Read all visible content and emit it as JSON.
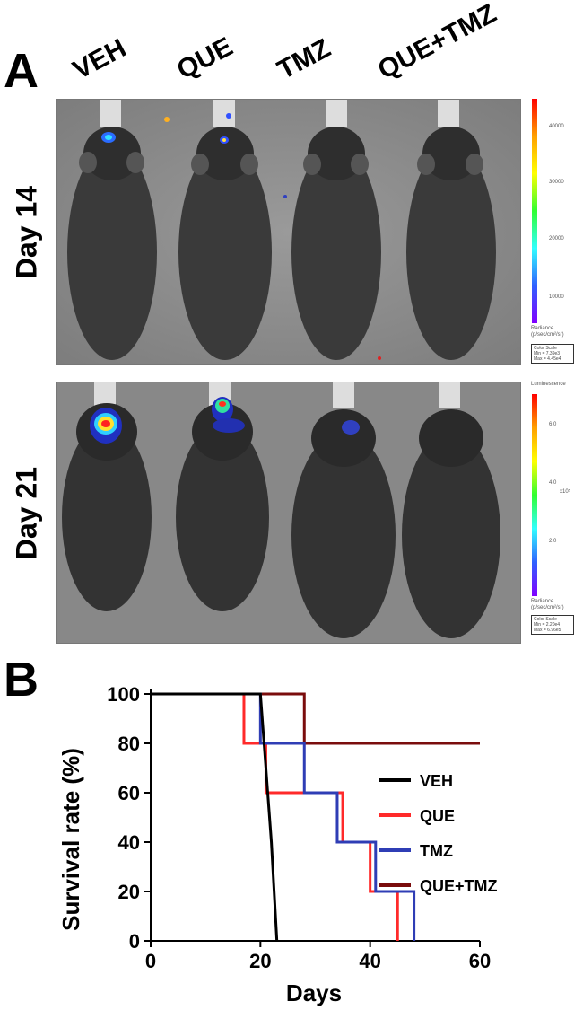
{
  "panel_a": {
    "letter": "A",
    "columns": [
      "VEH",
      "QUE",
      "TMZ",
      "QUE+TMZ"
    ],
    "rows": [
      "Day 14",
      "Day 21"
    ],
    "colorbar_top": {
      "ticks": [
        "40000",
        "30000",
        "20000",
        "10000"
      ],
      "title": "Radiance",
      "subtitle": "(p/sec/cm²/sr)",
      "box_lines": [
        "Color Scale",
        "Min = 7.39e3",
        "Max = 4.45e4"
      ]
    },
    "colorbar_bottom": {
      "title": "Luminescence",
      "ticks": [
        "6.0",
        "4.0",
        "2.0"
      ],
      "exponent": "x10⁵",
      "sub_title": "Radiance",
      "subtitle": "(p/sec/cm²/sr)",
      "box_lines": [
        "Color Scale",
        "Min = 2.20e4",
        "Max = 6.96e5"
      ]
    }
  },
  "panel_b": {
    "letter": "B",
    "chart_data": {
      "type": "line",
      "xlabel": "Days",
      "ylabel": "Survival rate (%)",
      "xlim": [
        0,
        60
      ],
      "ylim": [
        0,
        100
      ],
      "xticks": [
        "0",
        "20",
        "40",
        "60"
      ],
      "yticks": [
        "0",
        "20",
        "40",
        "60",
        "80",
        "100"
      ],
      "legend_position": "right-middle",
      "series": [
        {
          "name": "VEH",
          "color": "#000000",
          "x": [
            0,
            20,
            22,
            23,
            23
          ],
          "y": [
            100,
            100,
            40,
            0,
            0
          ]
        },
        {
          "name": "QUE",
          "color": "#ff2a2a",
          "x": [
            0,
            17,
            17,
            21,
            21,
            33,
            33,
            35,
            35,
            40,
            40,
            45,
            45
          ],
          "y": [
            100,
            100,
            80,
            80,
            60,
            60,
            60,
            60,
            40,
            40,
            20,
            20,
            0
          ]
        },
        {
          "name": "TMZ",
          "color": "#2f3db5",
          "x": [
            0,
            20,
            20,
            28,
            28,
            34,
            34,
            41,
            41,
            48,
            48
          ],
          "y": [
            100,
            100,
            80,
            80,
            60,
            60,
            40,
            40,
            20,
            20,
            0
          ]
        },
        {
          "name": "QUE+TMZ",
          "color": "#7a0c0c",
          "x": [
            0,
            28,
            28,
            60
          ],
          "y": [
            100,
            100,
            80,
            80
          ]
        }
      ]
    }
  }
}
